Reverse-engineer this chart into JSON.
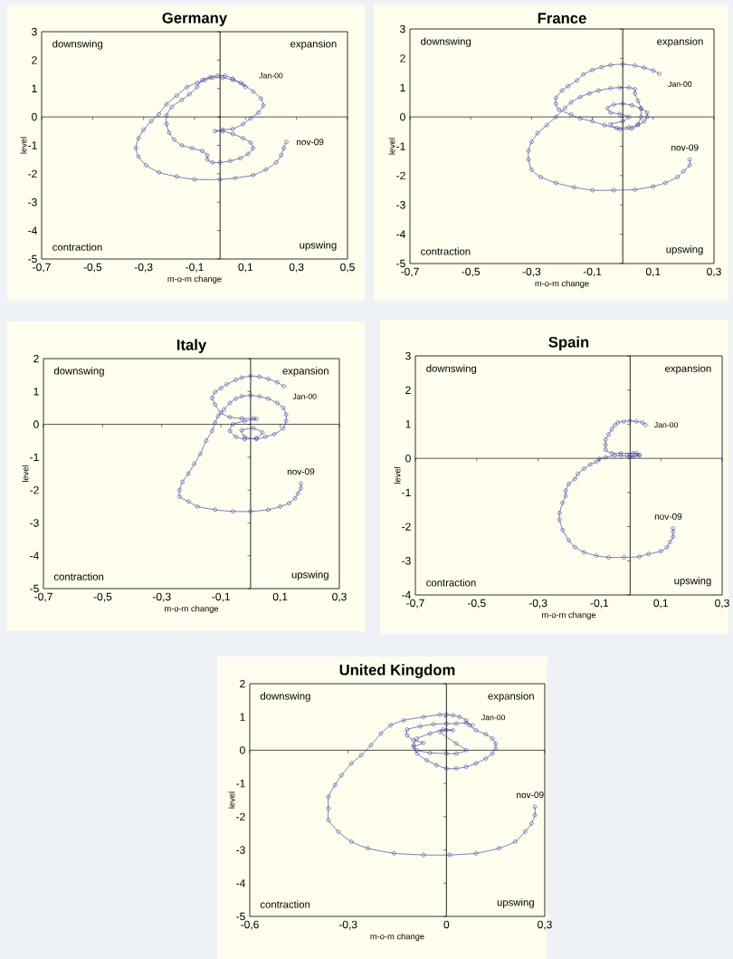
{
  "chart_data": [
    {
      "type": "line",
      "title": "Germany",
      "xlabel": "m-o-m change",
      "ylabel": "level",
      "color": "#3b3b9e",
      "marker": "circle",
      "xlim": [
        -0.7,
        0.5
      ],
      "ylim": [
        -5,
        3
      ],
      "xticks": [
        {
          "value": -0.7,
          "label": "-0,7"
        },
        {
          "value": -0.5,
          "label": "-0,5"
        },
        {
          "value": -0.3,
          "label": "-0,3"
        },
        {
          "value": -0.1,
          "label": "-0,1"
        },
        {
          "value": 0.1,
          "label": "0,1"
        },
        {
          "value": 0.3,
          "label": "0,3"
        },
        {
          "value": 0.5,
          "label": "0,5"
        }
      ],
      "yticks": [
        -5,
        -4,
        -3,
        -2,
        -1,
        0,
        1,
        2,
        3
      ],
      "ref_lines": [
        {
          "axis": "x",
          "value": 0,
          "color": "#000000"
        },
        {
          "axis": "y",
          "value": 0,
          "color": "#000000"
        }
      ],
      "annotations": [
        "downswing",
        "expansion",
        "contraction",
        "upswing",
        {
          "text": "Jan-00",
          "x": 0.1,
          "y": 1.05
        },
        {
          "text": "nov-09",
          "x": 0.26,
          "y": -0.88
        }
      ],
      "x": [
        0.1,
        0.08,
        0.05,
        0.02,
        -0.01,
        -0.04,
        -0.07,
        -0.09,
        -0.12,
        -0.15,
        -0.19,
        -0.21,
        -0.21,
        -0.2,
        -0.18,
        -0.15,
        -0.11,
        -0.07,
        -0.05,
        -0.05,
        -0.03,
        0,
        0.04,
        0.08,
        0.11,
        0.13,
        0.12,
        0.09,
        0.05,
        0.01,
        -0.02,
        0.01,
        0.05,
        0.09,
        0.12,
        0.15,
        0.17,
        0.16,
        0.13,
        0.09,
        0.05,
        0.01,
        -0.03,
        -0.06,
        -0.09,
        -0.13,
        -0.17,
        -0.21,
        -0.24,
        -0.27,
        -0.3,
        -0.32,
        -0.33,
        -0.32,
        -0.29,
        -0.24,
        -0.17,
        -0.1,
        0,
        0.06,
        0.13,
        0.18,
        0.22,
        0.24,
        0.25,
        0.26
      ],
      "values": [
        1.05,
        1.2,
        1.35,
        1.45,
        1.45,
        1.4,
        1.3,
        1.05,
        0.8,
        0.6,
        0.35,
        0.05,
        -0.25,
        -0.55,
        -0.8,
        -1.0,
        -1.1,
        -1.2,
        -1.35,
        -1.5,
        -1.6,
        -1.6,
        -1.55,
        -1.45,
        -1.3,
        -1.1,
        -0.9,
        -0.75,
        -0.6,
        -0.5,
        -0.5,
        -0.45,
        -0.42,
        -0.25,
        -0.05,
        0.15,
        0.4,
        0.65,
        0.9,
        1.15,
        1.3,
        1.38,
        1.38,
        1.3,
        1.2,
        1.05,
        0.75,
        0.45,
        0.1,
        -0.15,
        -0.45,
        -0.75,
        -1.1,
        -1.4,
        -1.7,
        -1.95,
        -2.1,
        -2.2,
        -2.2,
        -2.15,
        -2.05,
        -1.85,
        -1.6,
        -1.35,
        -1.1,
        -0.88
      ]
    },
    {
      "type": "line",
      "title": "France",
      "xlabel": "m-o-m change",
      "ylabel": "level",
      "color": "#3b3b9e",
      "marker": "circle",
      "xlim": [
        -0.7,
        0.3
      ],
      "ylim": [
        -5,
        3
      ],
      "xticks": [
        {
          "value": -0.7,
          "label": "-0,7"
        },
        {
          "value": -0.5,
          "label": "-0,5"
        },
        {
          "value": -0.3,
          "label": "-0,3"
        },
        {
          "value": -0.1,
          "label": "-0,1"
        },
        {
          "value": 0.1,
          "label": "0,1"
        },
        {
          "value": 0.3,
          "label": "0,3"
        }
      ],
      "yticks": [
        -5,
        -4,
        -3,
        -2,
        -1,
        0,
        1,
        2,
        3
      ],
      "ref_lines": [
        {
          "axis": "x",
          "value": 0,
          "color": "#000000"
        },
        {
          "axis": "y",
          "value": 0,
          "color": "#000000"
        }
      ],
      "annotations": [
        "downswing",
        "expansion",
        "contraction",
        "upswing",
        {
          "text": "Jan-00",
          "x": 0.12,
          "y": 1.47
        },
        {
          "text": "nov-09",
          "x": 0.22,
          "y": -1.45
        }
      ],
      "x": [
        0.12,
        0.1,
        0.07,
        0.04,
        0,
        -0.04,
        -0.07,
        -0.1,
        -0.13,
        -0.15,
        -0.18,
        -0.2,
        -0.22,
        -0.22,
        -0.21,
        -0.17,
        -0.14,
        -0.1,
        -0.06,
        -0.02,
        0.02,
        0.05,
        0.07,
        0.08,
        0.08,
        0.06,
        0.03,
        0,
        -0.03,
        -0.05,
        -0.04,
        -0.01,
        0.02,
        0,
        -0.04,
        -0.01,
        0.03,
        0.05,
        0.06,
        0.06,
        0.05,
        0.04,
        0.04,
        0.02,
        -0.01,
        -0.04,
        -0.08,
        -0.11,
        -0.14,
        -0.17,
        -0.19,
        -0.22,
        -0.25,
        -0.28,
        -0.3,
        -0.31,
        -0.31,
        -0.3,
        -0.27,
        -0.22,
        -0.16,
        -0.1,
        -0.03,
        0.04,
        0.1,
        0.14,
        0.18,
        0.2,
        0.22,
        0.22
      ],
      "values": [
        1.47,
        1.58,
        1.68,
        1.75,
        1.8,
        1.77,
        1.7,
        1.6,
        1.45,
        1.25,
        1.05,
        0.9,
        0.65,
        0.45,
        0.25,
        0.08,
        -0.05,
        -0.15,
        -0.28,
        -0.38,
        -0.35,
        -0.28,
        -0.15,
        0,
        0.15,
        0.28,
        0.4,
        0.45,
        0.42,
        0.3,
        0.15,
        0.1,
        0,
        -0.15,
        -0.25,
        -0.42,
        -0.4,
        -0.25,
        0,
        0.3,
        0.55,
        0.8,
        0.95,
        1.0,
        1.0,
        0.98,
        0.9,
        0.8,
        0.68,
        0.5,
        0.3,
        0,
        -0.28,
        -0.55,
        -0.85,
        -1.15,
        -1.45,
        -1.8,
        -2.05,
        -2.25,
        -2.4,
        -2.5,
        -2.5,
        -2.48,
        -2.37,
        -2.25,
        -2.05,
        -1.85,
        -1.65,
        -1.45
      ]
    },
    {
      "type": "line",
      "title": "Italy",
      "xlabel": "m-o-m change",
      "ylabel": "level",
      "color": "#3b3b9e",
      "marker": "circle",
      "xlim": [
        -0.7,
        0.3
      ],
      "ylim": [
        -5,
        2
      ],
      "xticks": [
        {
          "value": -0.7,
          "label": "-0,7"
        },
        {
          "value": -0.5,
          "label": "-0,5"
        },
        {
          "value": -0.3,
          "label": "-0,3"
        },
        {
          "value": -0.1,
          "label": "-0,1"
        },
        {
          "value": 0.1,
          "label": "0,1"
        },
        {
          "value": 0.3,
          "label": "0,3"
        }
      ],
      "yticks": [
        -5,
        -4,
        -3,
        -2,
        -1,
        0,
        1,
        2
      ],
      "ref_lines": [
        {
          "axis": "x",
          "value": 0,
          "color": "#000000"
        },
        {
          "axis": "y",
          "value": 0,
          "color": "#000000"
        }
      ],
      "annotations": [
        "downswing",
        "expansion",
        "contraction",
        "upswing",
        {
          "text": "Jan-00",
          "x": 0.113,
          "y": 1.16
        },
        {
          "text": "nov-09",
          "x": 0.17,
          "y": -1.8
        }
      ],
      "x": [
        0.113,
        0.09,
        0.06,
        0.03,
        0,
        -0.03,
        -0.05,
        -0.08,
        -0.1,
        -0.12,
        -0.13,
        -0.12,
        -0.1,
        -0.07,
        -0.03,
        0.01,
        0.02,
        -0.02,
        -0.06,
        -0.07,
        -0.05,
        -0.02,
        0.02,
        0.04,
        0.01,
        -0.03,
        -0.02,
        0.02,
        0.05,
        0.08,
        0.11,
        0.12,
        0.12,
        0.11,
        0.09,
        0.06,
        0.03,
        0,
        -0.03,
        -0.05,
        -0.07,
        -0.09,
        -0.11,
        -0.12,
        -0.13,
        -0.15,
        -0.17,
        -0.19,
        -0.21,
        -0.23,
        -0.24,
        -0.24,
        -0.21,
        -0.18,
        -0.12,
        -0.06,
        0,
        0.06,
        0.1,
        0.13,
        0.15,
        0.16,
        0.17,
        0.17
      ],
      "values": [
        1.16,
        1.28,
        1.38,
        1.45,
        1.47,
        1.42,
        1.35,
        1.22,
        1.1,
        0.98,
        0.8,
        0.6,
        0.35,
        0.22,
        0.18,
        0.18,
        0.16,
        0.1,
        0,
        -0.2,
        -0.38,
        -0.45,
        -0.42,
        -0.25,
        -0.12,
        -0.18,
        -0.38,
        -0.45,
        -0.38,
        -0.3,
        -0.12,
        0.1,
        0.3,
        0.5,
        0.65,
        0.78,
        0.85,
        0.88,
        0.85,
        0.78,
        0.65,
        0.45,
        0.25,
        0.05,
        -0.2,
        -0.5,
        -0.9,
        -1.2,
        -1.5,
        -1.75,
        -2.0,
        -2.2,
        -2.35,
        -2.5,
        -2.6,
        -2.65,
        -2.65,
        -2.6,
        -2.5,
        -2.4,
        -2.25,
        -2.1,
        -1.95,
        -1.8
      ]
    },
    {
      "type": "line",
      "title": "Spain",
      "xlabel": "m-o-m change",
      "ylabel": "level",
      "color": "#3b3b9e",
      "marker": "circle",
      "xlim": [
        -0.7,
        0.3
      ],
      "ylim": [
        -4,
        3
      ],
      "xticks": [
        {
          "value": -0.7,
          "label": "-0,7"
        },
        {
          "value": -0.5,
          "label": "-0,5"
        },
        {
          "value": -0.3,
          "label": "-0,3"
        },
        {
          "value": -0.1,
          "label": "-0,1"
        },
        {
          "value": 0.1,
          "label": "0,1"
        },
        {
          "value": 0.3,
          "label": "0,3"
        }
      ],
      "yticks": [
        -4,
        -3,
        -2,
        -1,
        0,
        1,
        2,
        3
      ],
      "ref_lines": [
        {
          "axis": "x",
          "value": 0,
          "color": "#000000"
        },
        {
          "axis": "y",
          "value": 0,
          "color": "#000000"
        }
      ],
      "annotations": [
        "downswing",
        "expansion",
        "contraction",
        "upswing",
        {
          "text": "Jan-00",
          "x": 0.05,
          "y": 0.98
        },
        {
          "text": "nov-09",
          "x": 0.14,
          "y": -2.05
        }
      ],
      "x": [
        0.05,
        0.04,
        0.02,
        0,
        -0.02,
        -0.04,
        -0.05,
        -0.06,
        -0.07,
        -0.08,
        -0.08,
        -0.08,
        -0.06,
        -0.03,
        0.02,
        0.03,
        0.01,
        -0.01,
        0.01,
        0.03,
        0,
        -0.03,
        -0.05,
        -0.08,
        -0.1,
        -0.11,
        -0.13,
        -0.15,
        -0.17,
        -0.18,
        -0.2,
        -0.21,
        -0.21,
        -0.22,
        -0.23,
        -0.23,
        -0.22,
        -0.2,
        -0.18,
        -0.15,
        -0.11,
        -0.07,
        -0.02,
        0.03,
        0.06,
        0.1,
        0.12,
        0.13,
        0.14,
        0.14,
        0.14
      ],
      "values": [
        0.98,
        1.05,
        1.08,
        1.1,
        1.08,
        1.05,
        0.97,
        0.85,
        0.7,
        0.55,
        0.4,
        0.25,
        0.15,
        0.15,
        0.15,
        0.1,
        0.05,
        0.1,
        0.15,
        0.08,
        0.05,
        0.08,
        0.08,
        0.03,
        -0.02,
        -0.1,
        -0.18,
        -0.3,
        -0.45,
        -0.6,
        -0.75,
        -0.95,
        -1.1,
        -1.3,
        -1.6,
        -1.8,
        -2.1,
        -2.4,
        -2.6,
        -2.75,
        -2.85,
        -2.9,
        -2.9,
        -2.88,
        -2.8,
        -2.72,
        -2.6,
        -2.45,
        -2.3,
        -2.15,
        -2.05
      ]
    },
    {
      "type": "line",
      "title": "United Kingdom",
      "xlabel": "m-o-m change",
      "ylabel": "level",
      "color": "#3b3b9e",
      "marker": "circle",
      "xlim": [
        -0.6,
        0.3
      ],
      "ylim": [
        -5,
        2
      ],
      "xticks": [
        {
          "value": -0.6,
          "label": "-0,6"
        },
        {
          "value": -0.3,
          "label": "-0,3"
        },
        0,
        {
          "value": 0.3,
          "label": "0,3"
        }
      ],
      "yticks": [
        -5,
        -4,
        -3,
        -2,
        -1,
        0,
        1,
        2
      ],
      "ref_lines": [
        {
          "axis": "x",
          "value": 0,
          "color": "#000000"
        },
        {
          "axis": "y",
          "value": 0,
          "color": "#000000"
        }
      ],
      "annotations": [
        "downswing",
        "expansion",
        "contraction",
        "upswing",
        {
          "text": "Jan-00",
          "x": 0.08,
          "y": 0.75
        },
        {
          "text": "nov-09",
          "x": 0.27,
          "y": -1.7
        }
      ],
      "x": [
        0.08,
        0.06,
        0.03,
        0,
        -0.04,
        -0.08,
        -0.12,
        -0.12,
        -0.1,
        -0.07,
        -0.1,
        -0.09,
        -0.05,
        0,
        0.03,
        0.06,
        0.03,
        -0.02,
        0,
        0.02,
        -0.01,
        -0.05,
        -0.09,
        -0.1,
        -0.09,
        -0.06,
        -0.03,
        0,
        0.03,
        0.06,
        0.09,
        0.12,
        0.14,
        0.15,
        0.15,
        0.14,
        0.12,
        0.09,
        0.07,
        0.06,
        0.04,
        0.02,
        0,
        -0.02,
        -0.07,
        -0.13,
        -0.17,
        -0.2,
        -0.23,
        -0.26,
        -0.29,
        -0.32,
        -0.34,
        -0.36,
        -0.36,
        -0.36,
        -0.33,
        -0.29,
        -0.24,
        -0.16,
        -0.07,
        0.01,
        0.09,
        0.16,
        0.21,
        0.24,
        0.26,
        0.27,
        0.27
      ],
      "values": [
        0.75,
        0.82,
        0.8,
        0.8,
        0.78,
        0.72,
        0.62,
        0.45,
        0.3,
        0.22,
        0.1,
        0,
        -0.08,
        -0.1,
        -0.1,
        0,
        0.2,
        0.55,
        0.6,
        0.6,
        0.62,
        0.5,
        0.35,
        0.15,
        -0.1,
        -0.3,
        -0.45,
        -0.55,
        -0.55,
        -0.5,
        -0.4,
        -0.25,
        -0.1,
        0.05,
        0.2,
        0.35,
        0.48,
        0.6,
        0.75,
        0.9,
        1.0,
        1.05,
        1.07,
        1.07,
        1.0,
        0.9,
        0.75,
        0.5,
        0.15,
        -0.15,
        -0.4,
        -0.75,
        -1.05,
        -1.4,
        -1.75,
        -2.1,
        -2.45,
        -2.75,
        -2.95,
        -3.1,
        -3.15,
        -3.15,
        -3.1,
        -2.95,
        -2.75,
        -2.45,
        -2.2,
        -1.95,
        -1.7
      ]
    }
  ]
}
